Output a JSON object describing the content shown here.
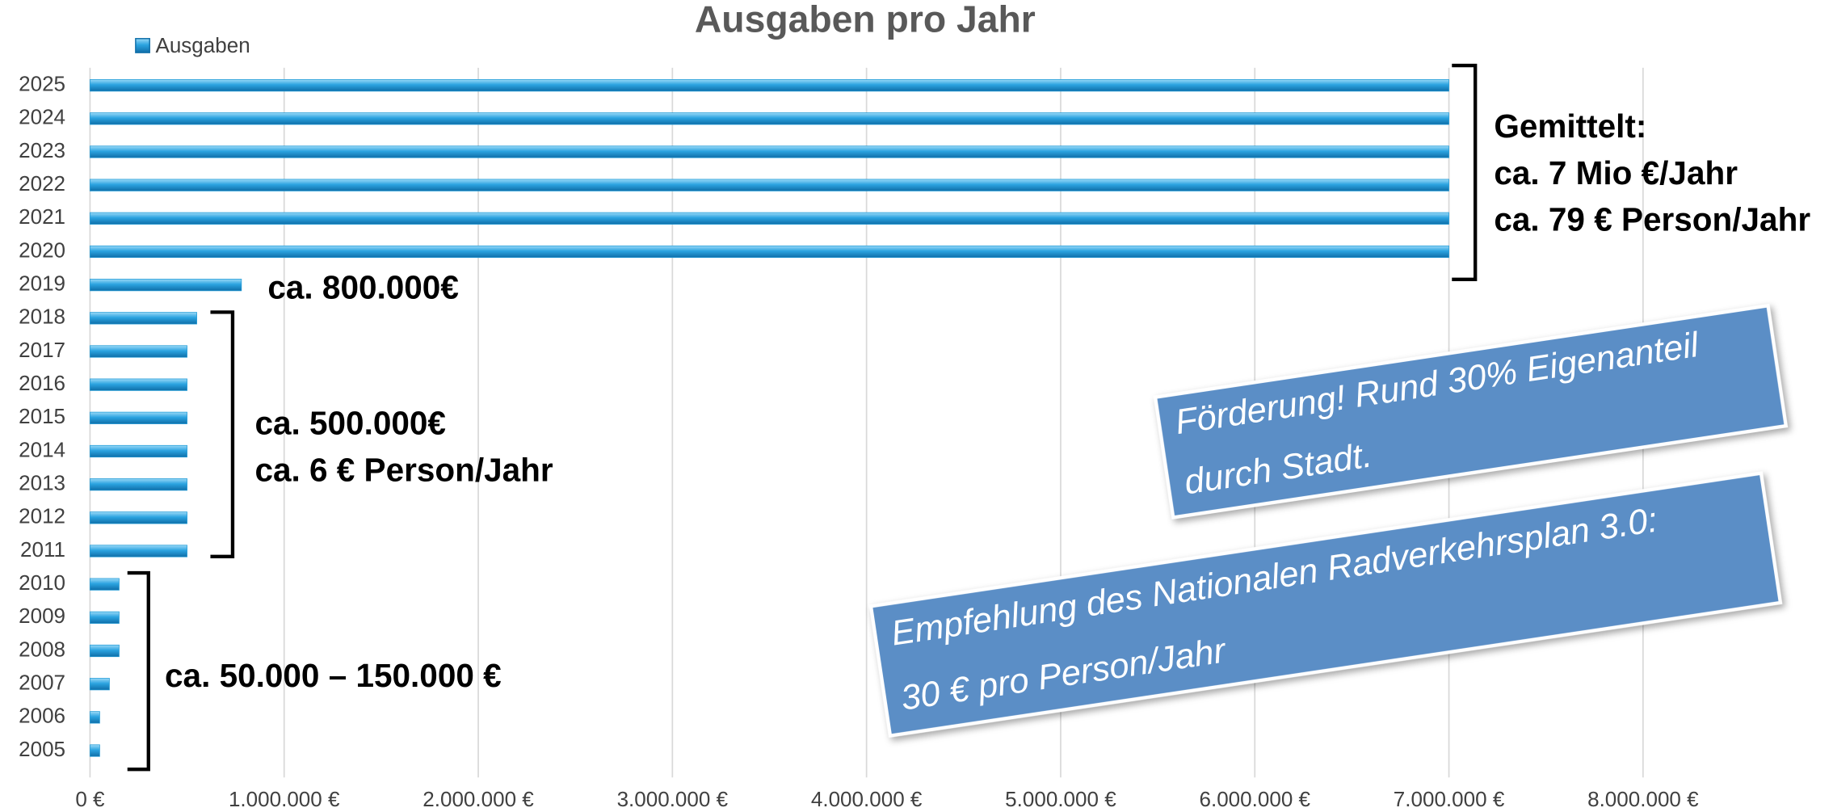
{
  "chart_data": {
    "type": "bar",
    "orientation": "horizontal",
    "title": "Ausgaben pro Jahr",
    "categories": [
      "2005",
      "2006",
      "2007",
      "2008",
      "2009",
      "2010",
      "2011",
      "2012",
      "2013",
      "2014",
      "2015",
      "2016",
      "2017",
      "2018",
      "2019",
      "2020",
      "2021",
      "2022",
      "2023",
      "2024",
      "2025"
    ],
    "series": [
      {
        "name": "Ausgaben",
        "color": "#1f9ad6",
        "values": [
          50000,
          50000,
          100000,
          150000,
          150000,
          150000,
          500000,
          500000,
          500000,
          500000,
          500000,
          500000,
          500000,
          550000,
          780000,
          7000000,
          7000000,
          7000000,
          7000000,
          7000000,
          7000000
        ]
      }
    ],
    "xlim": [
      0,
      8840000
    ],
    "xticks": [
      {
        "value": 0,
        "label": "0 €"
      },
      {
        "value": 1000000,
        "label": "1.000.000 €"
      },
      {
        "value": 2000000,
        "label": "2.000.000 €"
      },
      {
        "value": 3000000,
        "label": "3.000.000 €"
      },
      {
        "value": 4000000,
        "label": "4.000.000 €"
      },
      {
        "value": 5000000,
        "label": "5.000.000 €"
      },
      {
        "value": 6000000,
        "label": "6.000.000 €"
      },
      {
        "value": 7000000,
        "label": "7.000.000 €"
      },
      {
        "value": 8000000,
        "label": "8.000.000 €"
      }
    ],
    "grid": true,
    "legend": "top-left",
    "annotations": [
      "Gemittelt:",
      "ca. 7 Mio €/Jahr",
      "ca. 79 € Person/Jahr",
      "ca. 800.000€",
      "ca. 500.000€",
      "ca. 6 € Person/Jahr",
      "ca. 50.000 – 150.000 €"
    ],
    "callouts": [
      [
        "Förderung! Rund 30% Eigenanteil",
        "durch Stadt."
      ],
      [
        "Empfehlung des Nationalen Radverkehrsplan 3.0:",
        "30 € pro Person/Jahr"
      ]
    ]
  }
}
